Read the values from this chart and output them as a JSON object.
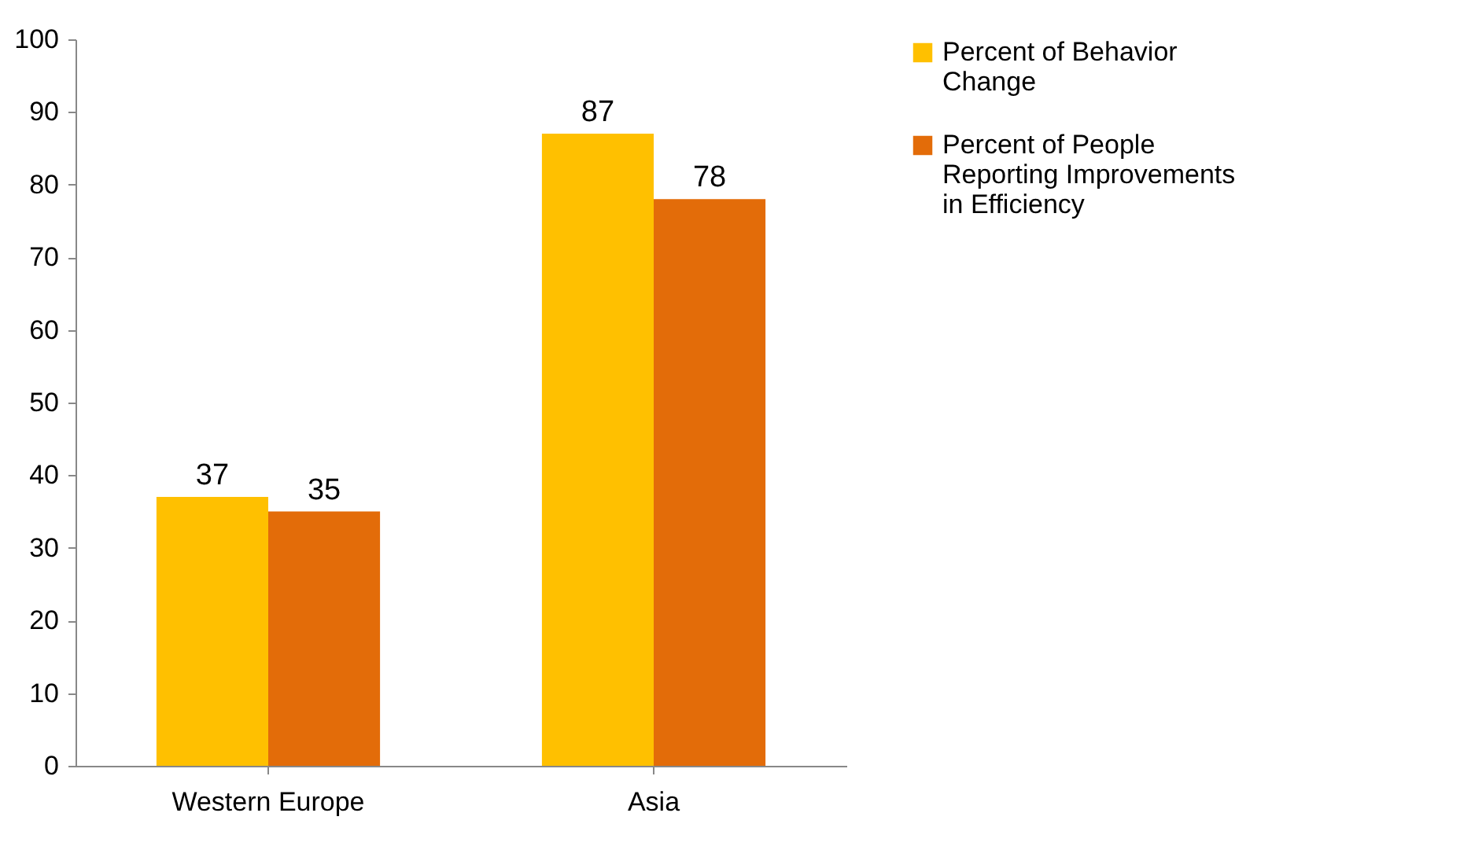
{
  "chart_data": {
    "type": "bar",
    "categories": [
      "Western Europe",
      "Asia"
    ],
    "series": [
      {
        "name": "Percent of Behavior Change",
        "color": "#ffc000",
        "values": [
          37,
          87
        ]
      },
      {
        "name": "Percent of People Reporting Improvements in Efficiency",
        "color": "#e36c09",
        "values": [
          35,
          78
        ]
      }
    ],
    "ylim": [
      0,
      100
    ],
    "yticks": [
      0,
      10,
      20,
      30,
      40,
      50,
      60,
      70,
      80,
      90,
      100
    ],
    "data_labels": true,
    "legend": "right",
    "grid": false
  }
}
